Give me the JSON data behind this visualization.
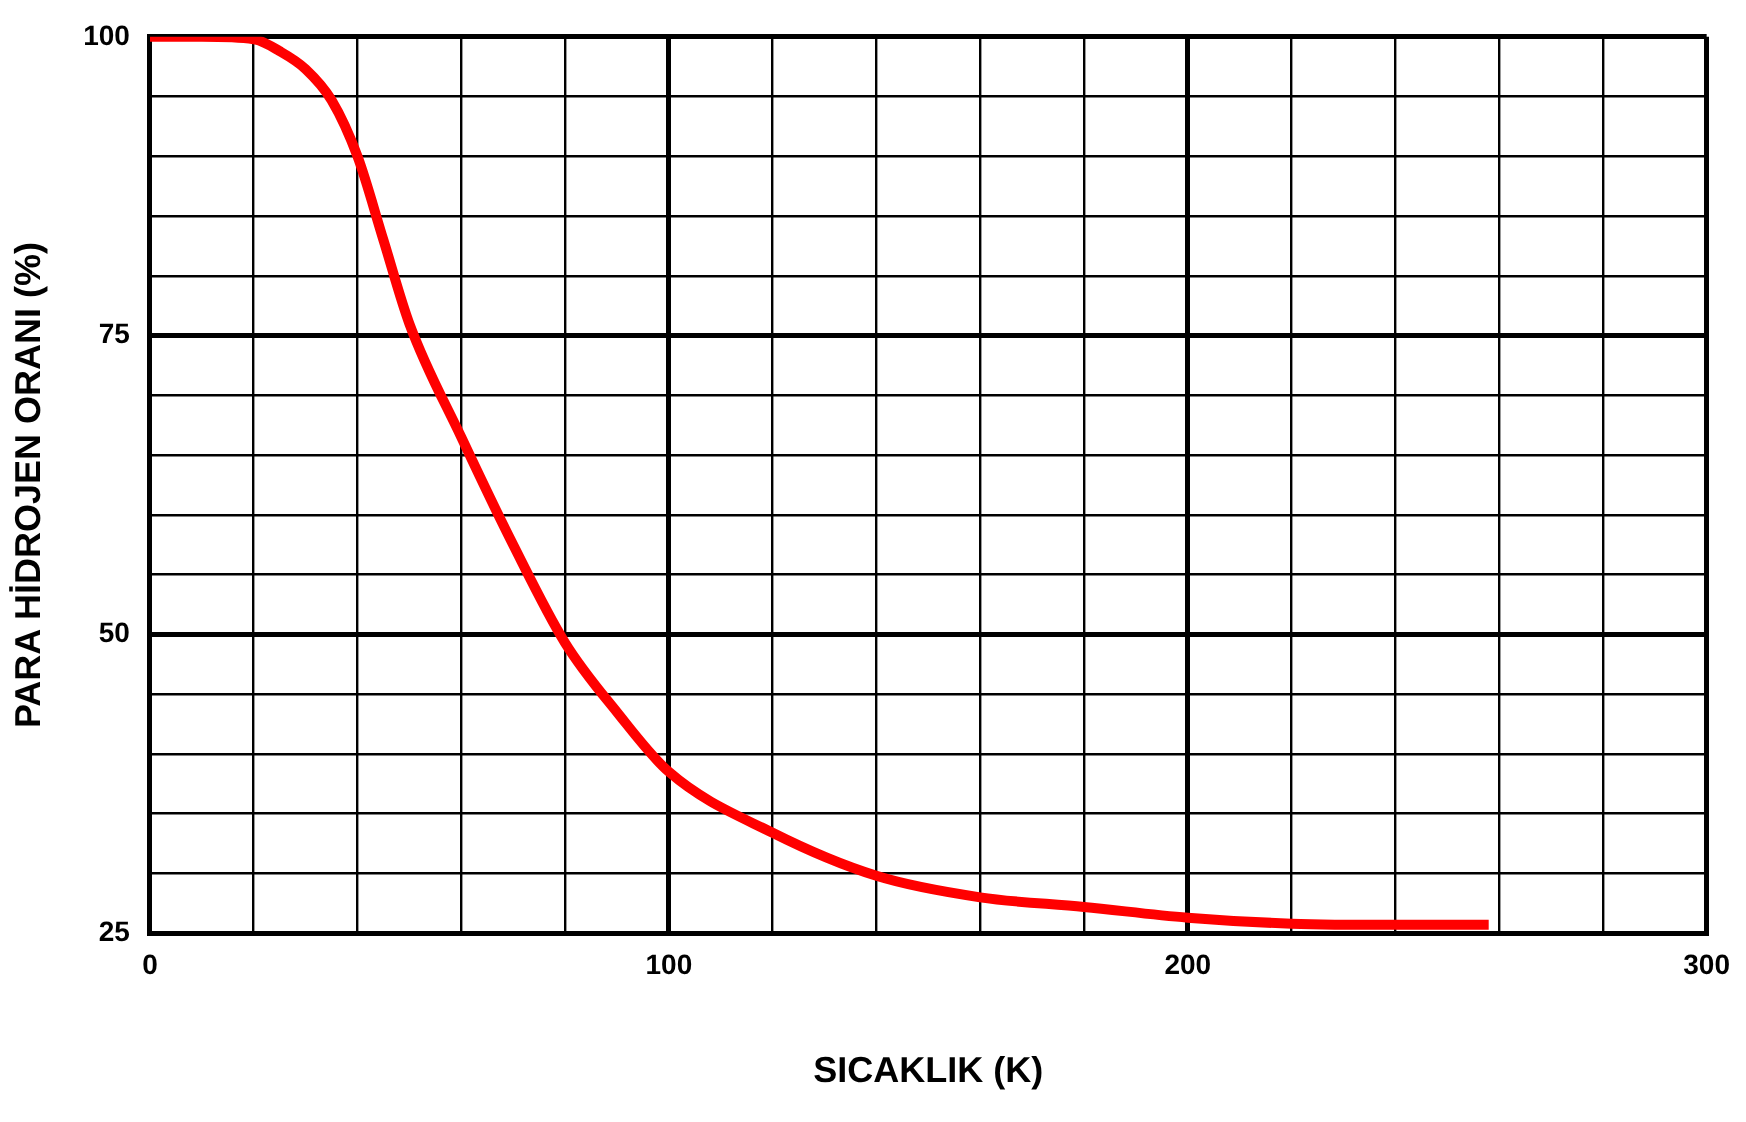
{
  "chart_data": {
    "type": "line",
    "xlabel": "SICAKLIK (K)",
    "ylabel": "PARA HİDROJEN ORANI (%)",
    "x": [
      0,
      10,
      20,
      25,
      30,
      35,
      40,
      45,
      50,
      60,
      70,
      80,
      90,
      100,
      120,
      140,
      160,
      180,
      200,
      220,
      240,
      258
    ],
    "series": [
      {
        "color": "#ff0000",
        "values": [
          100,
          100,
          99.8,
          98.8,
          97.3,
          94.7,
          90,
          83,
          76,
          66.5,
          57.5,
          49.3,
          43.5,
          38.5,
          33.4,
          29.8,
          28,
          27.2,
          26.3,
          25.8,
          25.7,
          25.7
        ]
      }
    ],
    "xlim": [
      0,
      300
    ],
    "xticks": [
      0,
      {
        "value": 20,
        "label": null
      },
      {
        "value": 40,
        "label": null
      },
      {
        "value": 60,
        "label": null
      },
      {
        "value": 80,
        "label": null
      },
      100,
      {
        "value": 120,
        "label": null
      },
      {
        "value": 140,
        "label": null
      },
      {
        "value": 160,
        "label": null
      },
      {
        "value": 180,
        "label": null
      },
      200,
      {
        "value": 220,
        "label": null
      },
      {
        "value": 240,
        "label": null
      },
      {
        "value": 260,
        "label": null
      },
      {
        "value": 280,
        "label": null
      },
      300
    ],
    "ylim": [
      25,
      100
    ],
    "yticks": [
      25,
      {
        "value": 30,
        "label": null
      },
      {
        "value": 35,
        "label": null
      },
      {
        "value": 40,
        "label": null
      },
      {
        "value": 45,
        "label": null
      },
      50,
      {
        "value": 55,
        "label": null
      },
      {
        "value": 60,
        "label": null
      },
      {
        "value": 65,
        "label": null
      },
      {
        "value": 70,
        "label": null
      },
      75,
      {
        "value": 80,
        "label": null
      },
      {
        "value": 85,
        "label": null
      },
      {
        "value": 90,
        "label": null
      },
      {
        "value": 95,
        "label": null
      },
      100
    ],
    "grid": true,
    "marker": "none",
    "line_style": "solid",
    "legend": false
  }
}
